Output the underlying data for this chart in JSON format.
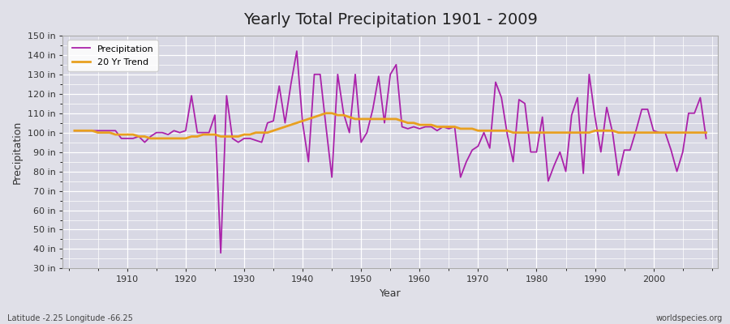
{
  "title": "Yearly Total Precipitation 1901 - 2009",
  "xlabel": "Year",
  "ylabel": "Precipitation",
  "years": [
    1901,
    1902,
    1903,
    1904,
    1905,
    1906,
    1907,
    1908,
    1909,
    1910,
    1911,
    1912,
    1913,
    1914,
    1915,
    1916,
    1917,
    1918,
    1919,
    1920,
    1921,
    1922,
    1923,
    1924,
    1925,
    1926,
    1927,
    1928,
    1929,
    1930,
    1931,
    1932,
    1933,
    1934,
    1935,
    1936,
    1937,
    1938,
    1939,
    1940,
    1941,
    1942,
    1943,
    1944,
    1945,
    1946,
    1947,
    1948,
    1949,
    1950,
    1951,
    1952,
    1953,
    1954,
    1955,
    1956,
    1957,
    1958,
    1959,
    1960,
    1961,
    1962,
    1963,
    1964,
    1965,
    1966,
    1967,
    1968,
    1969,
    1970,
    1971,
    1972,
    1973,
    1974,
    1975,
    1976,
    1977,
    1978,
    1979,
    1980,
    1981,
    1982,
    1983,
    1984,
    1985,
    1986,
    1987,
    1988,
    1989,
    1990,
    1991,
    1992,
    1993,
    1994,
    1995,
    1996,
    1997,
    1998,
    1999,
    2000,
    2001,
    2002,
    2003,
    2004,
    2005,
    2006,
    2007,
    2008,
    2009
  ],
  "precip": [
    101,
    101,
    101,
    101,
    101,
    101,
    101,
    101,
    97,
    97,
    97,
    98,
    95,
    98,
    100,
    100,
    99,
    101,
    100,
    101,
    119,
    100,
    100,
    100,
    109,
    38,
    119,
    97,
    95,
    97,
    97,
    96,
    95,
    105,
    106,
    124,
    105,
    125,
    142,
    105,
    85,
    130,
    130,
    103,
    77,
    130,
    110,
    100,
    130,
    95,
    100,
    112,
    129,
    105,
    130,
    135,
    103,
    102,
    103,
    102,
    103,
    103,
    101,
    103,
    102,
    103,
    77,
    85,
    91,
    93,
    100,
    92,
    126,
    118,
    99,
    85,
    117,
    115,
    90,
    90,
    108,
    75,
    83,
    90,
    80,
    109,
    118,
    79,
    130,
    108,
    90,
    113,
    100,
    78,
    91,
    91,
    101,
    112,
    112,
    101,
    100,
    100,
    91,
    80,
    90,
    110,
    110,
    118,
    97
  ],
  "trend": [
    101,
    101,
    101,
    101,
    100,
    100,
    100,
    99,
    99,
    99,
    99,
    98,
    98,
    97,
    97,
    97,
    97,
    97,
    97,
    97,
    98,
    98,
    99,
    99,
    99,
    98,
    98,
    98,
    98,
    99,
    99,
    100,
    100,
    100,
    101,
    102,
    103,
    104,
    105,
    106,
    107,
    108,
    109,
    110,
    110,
    109,
    109,
    108,
    107,
    107,
    107,
    107,
    107,
    107,
    107,
    107,
    106,
    105,
    105,
    104,
    104,
    104,
    103,
    103,
    103,
    103,
    102,
    102,
    102,
    101,
    101,
    101,
    101,
    101,
    101,
    100,
    100,
    100,
    100,
    100,
    100,
    100,
    100,
    100,
    100,
    100,
    100,
    100,
    100,
    101,
    101,
    101,
    101,
    100,
    100,
    100,
    100,
    100,
    100,
    100,
    100,
    100,
    100,
    100,
    100,
    100,
    100,
    100,
    100
  ],
  "ylim": [
    30,
    150
  ],
  "yticks": [
    30,
    40,
    50,
    60,
    70,
    80,
    90,
    100,
    110,
    120,
    130,
    140,
    150
  ],
  "xticks": [
    1910,
    1920,
    1930,
    1940,
    1950,
    1960,
    1970,
    1980,
    1990,
    2000
  ],
  "precip_color": "#aa22aa",
  "trend_color": "#e8a020",
  "fig_bg_color": "#e0e0e8",
  "plot_bg_color": "#d8d8e4",
  "grid_color": "#ffffff",
  "spine_color": "#aaaaaa",
  "tick_color": "#333333",
  "footer_left": "Latitude -2.25 Longitude -66.25",
  "footer_right": "worldspecies.org",
  "legend_labels": [
    "Precipitation",
    "20 Yr Trend"
  ],
  "title_fontsize": 14,
  "axis_fontsize": 9,
  "tick_fontsize": 8,
  "footer_fontsize": 7
}
